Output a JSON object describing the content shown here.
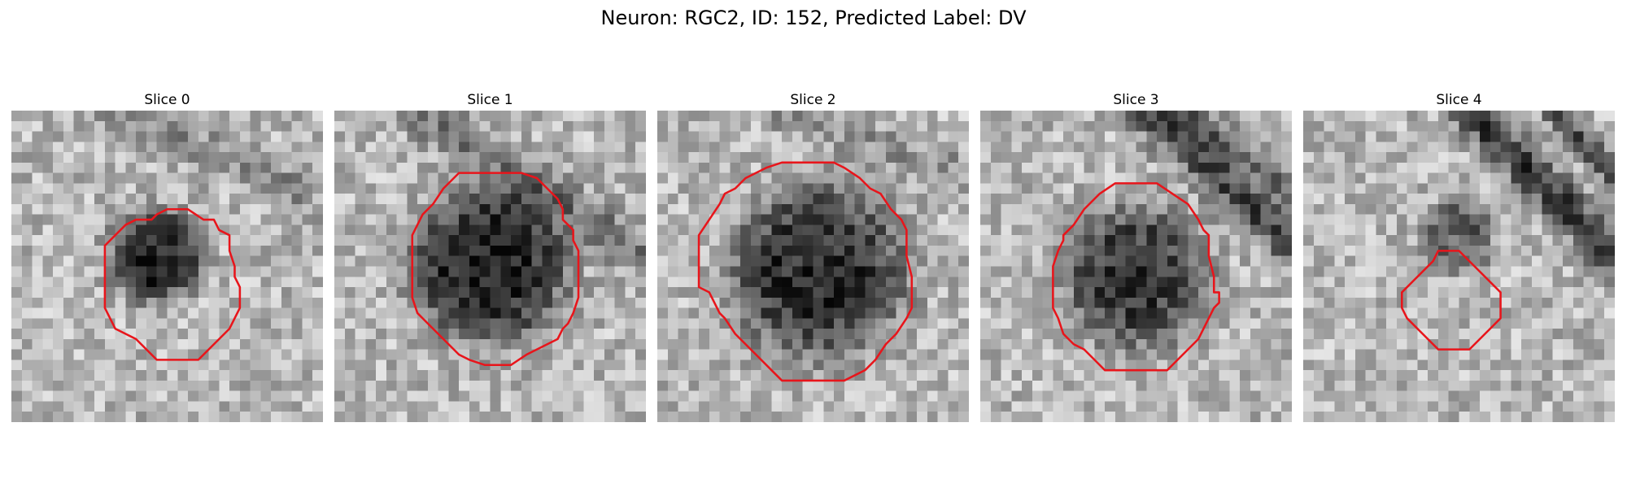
{
  "figure": {
    "title": "Neuron: RGC2, ID: 152, Predicted Label: DV",
    "colors": {
      "contour": "#e8151b",
      "background": "#ffffff"
    }
  },
  "panels": [
    {
      "title": "Slice 0",
      "seed": 11,
      "blobs": [
        {
          "cx": 14,
          "cy": 14,
          "r": 4.5,
          "d": 0.6
        }
      ],
      "ridges": [
        {
          "x0": 10,
          "y0": 0,
          "x1": 28,
          "y1": 8,
          "w": 2.0,
          "d": 0.18
        }
      ],
      "contour": [
        [
          15,
          9.5
        ],
        [
          17,
          9.5
        ],
        [
          18.5,
          10.5
        ],
        [
          19.5,
          10.5
        ],
        [
          20,
          11.5
        ],
        [
          21,
          12
        ],
        [
          21,
          13.5
        ],
        [
          21.5,
          15
        ],
        [
          21.5,
          16
        ],
        [
          22,
          17
        ],
        [
          22,
          19
        ],
        [
          21.5,
          20
        ],
        [
          21,
          21
        ],
        [
          20,
          22
        ],
        [
          19,
          23
        ],
        [
          18,
          24
        ],
        [
          14,
          24
        ],
        [
          13,
          23
        ],
        [
          12,
          22
        ],
        [
          11,
          21.5
        ],
        [
          10,
          21
        ],
        [
          9.5,
          20
        ],
        [
          9,
          19
        ],
        [
          9,
          13
        ],
        [
          10,
          12
        ],
        [
          11,
          11
        ],
        [
          12,
          10.5
        ],
        [
          13.5,
          10.5
        ],
        [
          14,
          10
        ]
      ]
    },
    {
      "title": "Slice 1",
      "seed": 23,
      "blobs": [
        {
          "cx": 15,
          "cy": 15,
          "r": 7.5,
          "d": 0.6
        }
      ],
      "ridges": [
        {
          "x0": 8,
          "y0": 0,
          "x1": 30,
          "y1": 14,
          "w": 2.2,
          "d": 0.25
        }
      ],
      "contour": [
        [
          12,
          6
        ],
        [
          16,
          6
        ],
        [
          18,
          6
        ],
        [
          19.5,
          6.5
        ],
        [
          20.5,
          7.5
        ],
        [
          21.5,
          8.5
        ],
        [
          22,
          9.5
        ],
        [
          22,
          10.5
        ],
        [
          22.5,
          11
        ],
        [
          23,
          11.5
        ],
        [
          23,
          12.5
        ],
        [
          23.5,
          13.5
        ],
        [
          23.5,
          16
        ],
        [
          23.5,
          18
        ],
        [
          23,
          19.5
        ],
        [
          22.5,
          20.5
        ],
        [
          22,
          21
        ],
        [
          21.5,
          22
        ],
        [
          20.5,
          22.5
        ],
        [
          19.5,
          23
        ],
        [
          18.5,
          23.5
        ],
        [
          17,
          24.5
        ],
        [
          14.5,
          24.5
        ],
        [
          13,
          24
        ],
        [
          12,
          23.5
        ],
        [
          11,
          22.5
        ],
        [
          10,
          21.5
        ],
        [
          9,
          20.5
        ],
        [
          8,
          19.5
        ],
        [
          7.5,
          18
        ],
        [
          7.5,
          12
        ],
        [
          8,
          11
        ],
        [
          8.5,
          10
        ],
        [
          9.5,
          9
        ],
        [
          10.5,
          7.5
        ],
        [
          11.5,
          6.5
        ]
      ]
    },
    {
      "title": "Slice 2",
      "seed": 37,
      "blobs": [
        {
          "cx": 15.5,
          "cy": 15.5,
          "r": 8.5,
          "d": 0.55
        }
      ],
      "ridges": [
        {
          "x0": 12,
          "y0": 0,
          "x1": 30,
          "y1": 6,
          "w": 1.8,
          "d": 0.15
        }
      ],
      "contour": [
        [
          12,
          5
        ],
        [
          17,
          5
        ],
        [
          18,
          5.5
        ],
        [
          19.5,
          6.5
        ],
        [
          20.5,
          7.5
        ],
        [
          21.5,
          8
        ],
        [
          22.5,
          9.5
        ],
        [
          23.5,
          10.5
        ],
        [
          24,
          11.5
        ],
        [
          24,
          14
        ],
        [
          24.5,
          16
        ],
        [
          24.5,
          19
        ],
        [
          24,
          20
        ],
        [
          23,
          21.5
        ],
        [
          22,
          22.5
        ],
        [
          21,
          24
        ],
        [
          20,
          25
        ],
        [
          18,
          26
        ],
        [
          12,
          26
        ],
        [
          11,
          25
        ],
        [
          10,
          24
        ],
        [
          9.5,
          23.5
        ],
        [
          8.5,
          22.5
        ],
        [
          7.5,
          21.5
        ],
        [
          6.5,
          20
        ],
        [
          6,
          19.5
        ],
        [
          5,
          17.5
        ],
        [
          4,
          17
        ],
        [
          4,
          12
        ],
        [
          5,
          10.5
        ],
        [
          6,
          9
        ],
        [
          6.5,
          8
        ],
        [
          7.5,
          7.5
        ],
        [
          8.5,
          6.5
        ],
        [
          10.5,
          5.5
        ]
      ]
    },
    {
      "title": "Slice 3",
      "seed": 53,
      "blobs": [
        {
          "cx": 15,
          "cy": 16,
          "r": 7,
          "d": 0.5
        }
      ],
      "ridges": [
        {
          "x0": 16,
          "y0": 0,
          "x1": 30,
          "y1": 13,
          "w": 2.0,
          "d": 0.45
        },
        {
          "x0": 20,
          "y0": 0,
          "x1": 30,
          "y1": 8,
          "w": 1.5,
          "d": 0.3
        }
      ],
      "contour": [
        [
          13,
          7
        ],
        [
          17,
          7
        ],
        [
          18.5,
          8
        ],
        [
          20,
          9
        ],
        [
          21,
          10.5
        ],
        [
          21.5,
          11.5
        ],
        [
          22,
          12
        ],
        [
          22,
          14
        ],
        [
          22.5,
          16
        ],
        [
          22.5,
          17.5
        ],
        [
          23,
          17.5
        ],
        [
          23,
          18.5
        ],
        [
          22.5,
          19
        ],
        [
          22,
          20
        ],
        [
          21.5,
          21
        ],
        [
          21,
          22
        ],
        [
          20,
          23
        ],
        [
          19,
          24
        ],
        [
          18,
          25
        ],
        [
          12,
          25
        ],
        [
          11,
          24
        ],
        [
          10,
          23
        ],
        [
          9,
          22.5
        ],
        [
          8,
          21.5
        ],
        [
          7.5,
          20
        ],
        [
          7,
          19
        ],
        [
          7,
          16
        ],
        [
          7,
          15
        ],
        [
          7.5,
          13.5
        ],
        [
          8,
          12.5
        ],
        [
          8,
          12
        ],
        [
          9,
          11
        ],
        [
          10,
          9.5
        ],
        [
          11.5,
          8
        ]
      ]
    },
    {
      "title": "Slice 4",
      "seed": 71,
      "blobs": [
        {
          "cx": 15,
          "cy": 12,
          "r": 3.5,
          "d": 0.35
        }
      ],
      "ridges": [
        {
          "x0": 16,
          "y0": 0,
          "x1": 30,
          "y1": 14,
          "w": 2.0,
          "d": 0.5
        },
        {
          "x0": 24,
          "y0": 0,
          "x1": 30,
          "y1": 6,
          "w": 1.2,
          "d": 0.45
        }
      ],
      "contour": [
        [
          13,
          13.5
        ],
        [
          15,
          13.5
        ],
        [
          16,
          14.5
        ],
        [
          17,
          15.5
        ],
        [
          19,
          17.5
        ],
        [
          19,
          20
        ],
        [
          18,
          21
        ],
        [
          17,
          22
        ],
        [
          16,
          23
        ],
        [
          13,
          23
        ],
        [
          12,
          22
        ],
        [
          11,
          21
        ],
        [
          10,
          20
        ],
        [
          9.5,
          19
        ],
        [
          9.5,
          17.5
        ],
        [
          10.5,
          16.5
        ],
        [
          11.5,
          15.5
        ],
        [
          12.5,
          14.5
        ]
      ]
    }
  ]
}
